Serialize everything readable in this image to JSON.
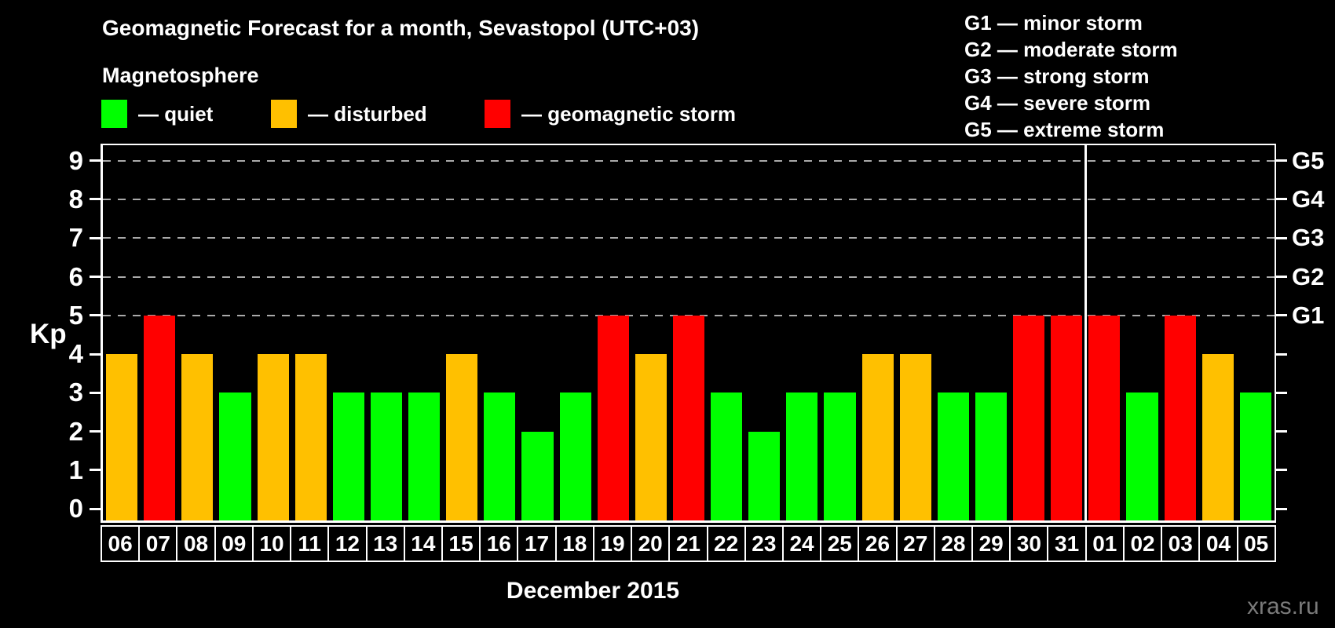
{
  "title": "Geomagnetic Forecast for a month, Sevastopol (UTC+03)",
  "subtitle": "Magnetosphere",
  "legend": {
    "items": [
      {
        "label": "— quiet",
        "color": "#00ff00",
        "state": "quiet"
      },
      {
        "label": "— disturbed",
        "color": "#ffc000",
        "state": "disturbed"
      },
      {
        "label": "— geomagnetic storm",
        "color": "#ff0000",
        "state": "storm"
      }
    ]
  },
  "storm_scale_legend": [
    "G1 — minor storm",
    "G2 — moderate storm",
    "G3 — strong storm",
    "G4 — severe storm",
    "G5 — extreme storm"
  ],
  "watermark": "xras.ru",
  "chart_data": {
    "type": "bar",
    "title": "Geomagnetic Forecast for a month, Sevastopol (UTC+03)",
    "xlabel": "December 2015",
    "ylabel": "Kp",
    "ylim": [
      -0.3,
      9.4
    ],
    "yticks": [
      0,
      1,
      2,
      3,
      4,
      5,
      6,
      7,
      8,
      9
    ],
    "gridlines_at": [
      5,
      6,
      7,
      8,
      9
    ],
    "grid": "dashed",
    "legend_position": "top",
    "right_axis": [
      {
        "kp": 5,
        "label": "G1"
      },
      {
        "kp": 6,
        "label": "G2"
      },
      {
        "kp": 7,
        "label": "G3"
      },
      {
        "kp": 8,
        "label": "G4"
      },
      {
        "kp": 9,
        "label": "G5"
      }
    ],
    "categories": [
      "06",
      "07",
      "08",
      "09",
      "10",
      "11",
      "12",
      "13",
      "14",
      "15",
      "16",
      "17",
      "18",
      "19",
      "20",
      "21",
      "22",
      "23",
      "24",
      "25",
      "26",
      "27",
      "28",
      "29",
      "30",
      "31",
      "01",
      "02",
      "03",
      "04",
      "05"
    ],
    "values": [
      4,
      5,
      4,
      3,
      4,
      4,
      3,
      3,
      3,
      4,
      3,
      2,
      3,
      5,
      4,
      5,
      3,
      2,
      3,
      3,
      4,
      4,
      3,
      3,
      5,
      5,
      5,
      3,
      5,
      4,
      3
    ],
    "states": [
      "disturbed",
      "storm",
      "disturbed",
      "quiet",
      "disturbed",
      "disturbed",
      "quiet",
      "quiet",
      "quiet",
      "disturbed",
      "quiet",
      "quiet",
      "quiet",
      "storm",
      "disturbed",
      "storm",
      "quiet",
      "quiet",
      "quiet",
      "quiet",
      "disturbed",
      "disturbed",
      "quiet",
      "quiet",
      "storm",
      "storm",
      "storm",
      "quiet",
      "storm",
      "disturbed",
      "quiet"
    ],
    "colors_by_state": {
      "quiet": "#00ff00",
      "disturbed": "#ffc000",
      "storm": "#ff0000"
    },
    "month_separator_before_index": 26,
    "background_color": "#000000",
    "gridline_color": "#aaaaaa",
    "axis_color": "#ffffff"
  }
}
